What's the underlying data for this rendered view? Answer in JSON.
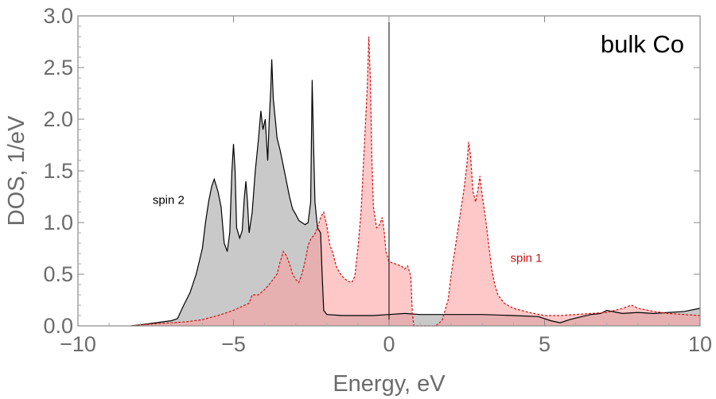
{
  "chart_data": {
    "type": "area",
    "title": "bulk Co",
    "xlabel": "Energy, eV",
    "ylabel": "DOS, 1/eV",
    "xlim": [
      -10,
      10
    ],
    "ylim": [
      0,
      3.0
    ],
    "xticks": [
      -10,
      -5,
      0,
      5,
      10
    ],
    "xtick_labels": [
      "−10",
      "−5",
      "0",
      "5",
      "10"
    ],
    "yticks": [
      0,
      0.5,
      1.0,
      1.5,
      2.0,
      2.5,
      3.0
    ],
    "ytick_labels": [
      "0.0",
      "0.5",
      "1.0",
      "1.5",
      "2.0",
      "2.5",
      "3.0"
    ],
    "grid": false,
    "vertical_line_x": 0,
    "annotations": [
      {
        "text": "spin 2",
        "x": -7.6,
        "y": 1.18,
        "color": "#000000"
      },
      {
        "text": "spin 1",
        "x": 3.9,
        "y": 0.62,
        "color": "#cc1111"
      }
    ],
    "series": [
      {
        "name": "spin 2",
        "line_color": "#000000",
        "fill_color": "#c9c9c9",
        "line_style": "solid",
        "points": [
          [
            -8.3,
            0.0
          ],
          [
            -8.0,
            0.01
          ],
          [
            -7.5,
            0.03
          ],
          [
            -7.0,
            0.05
          ],
          [
            -6.8,
            0.07
          ],
          [
            -6.6,
            0.2
          ],
          [
            -6.4,
            0.32
          ],
          [
            -6.2,
            0.5
          ],
          [
            -6.0,
            0.75
          ],
          [
            -5.9,
            1.0
          ],
          [
            -5.8,
            1.2
          ],
          [
            -5.7,
            1.35
          ],
          [
            -5.62,
            1.42
          ],
          [
            -5.5,
            1.3
          ],
          [
            -5.4,
            1.15
          ],
          [
            -5.3,
            0.8
          ],
          [
            -5.2,
            0.72
          ],
          [
            -5.12,
            0.9
          ],
          [
            -5.05,
            1.5
          ],
          [
            -5.0,
            1.76
          ],
          [
            -4.95,
            1.5
          ],
          [
            -4.9,
            0.95
          ],
          [
            -4.8,
            0.85
          ],
          [
            -4.72,
            0.92
          ],
          [
            -4.65,
            1.25
          ],
          [
            -4.6,
            1.4
          ],
          [
            -4.55,
            1.2
          ],
          [
            -4.5,
            0.9
          ],
          [
            -4.4,
            1.1
          ],
          [
            -4.3,
            1.5
          ],
          [
            -4.2,
            1.8
          ],
          [
            -4.12,
            2.08
          ],
          [
            -4.05,
            1.9
          ],
          [
            -3.98,
            2.0
          ],
          [
            -3.9,
            1.6
          ],
          [
            -3.85,
            2.0
          ],
          [
            -3.8,
            2.3
          ],
          [
            -3.77,
            2.58
          ],
          [
            -3.72,
            2.2
          ],
          [
            -3.65,
            1.98
          ],
          [
            -3.6,
            1.82
          ],
          [
            -3.5,
            1.7
          ],
          [
            -3.4,
            1.55
          ],
          [
            -3.3,
            1.4
          ],
          [
            -3.2,
            1.25
          ],
          [
            -3.1,
            1.13
          ],
          [
            -3.0,
            1.08
          ],
          [
            -2.9,
            1.02
          ],
          [
            -2.8,
            1.0
          ],
          [
            -2.7,
            0.98
          ],
          [
            -2.6,
            1.0
          ],
          [
            -2.52,
            1.2
          ],
          [
            -2.47,
            2.38
          ],
          [
            -2.43,
            1.8
          ],
          [
            -2.38,
            1.2
          ],
          [
            -2.3,
            0.95
          ],
          [
            -2.2,
            0.9
          ],
          [
            -2.15,
            0.5
          ],
          [
            -2.1,
            0.15
          ],
          [
            -2.0,
            0.11
          ],
          [
            -1.5,
            0.1
          ],
          [
            -1.0,
            0.1
          ],
          [
            -0.5,
            0.1
          ],
          [
            0.0,
            0.11
          ],
          [
            0.5,
            0.12
          ],
          [
            1.0,
            0.11
          ],
          [
            2.0,
            0.11
          ],
          [
            3.0,
            0.11
          ],
          [
            4.0,
            0.1
          ],
          [
            4.8,
            0.09
          ],
          [
            5.2,
            0.05
          ],
          [
            5.5,
            0.03
          ],
          [
            5.8,
            0.06
          ],
          [
            6.2,
            0.09
          ],
          [
            6.5,
            0.11
          ],
          [
            6.8,
            0.12
          ],
          [
            7.0,
            0.15
          ],
          [
            7.5,
            0.12
          ],
          [
            8.0,
            0.13
          ],
          [
            8.5,
            0.12
          ],
          [
            9.0,
            0.13
          ],
          [
            9.5,
            0.14
          ],
          [
            10.0,
            0.17
          ]
        ]
      },
      {
        "name": "spin 1",
        "line_color": "#cc1111",
        "fill_color": "#ff9b9b",
        "fill_opacity": 0.55,
        "line_style": "dashed",
        "points": [
          [
            -8.3,
            0.0
          ],
          [
            -8.0,
            0.01
          ],
          [
            -7.5,
            0.02
          ],
          [
            -7.0,
            0.03
          ],
          [
            -6.5,
            0.04
          ],
          [
            -6.0,
            0.06
          ],
          [
            -5.5,
            0.1
          ],
          [
            -5.0,
            0.15
          ],
          [
            -4.5,
            0.22
          ],
          [
            -4.4,
            0.3
          ],
          [
            -4.2,
            0.3
          ],
          [
            -4.0,
            0.35
          ],
          [
            -3.8,
            0.42
          ],
          [
            -3.6,
            0.5
          ],
          [
            -3.5,
            0.62
          ],
          [
            -3.4,
            0.72
          ],
          [
            -3.3,
            0.68
          ],
          [
            -3.2,
            0.6
          ],
          [
            -3.1,
            0.5
          ],
          [
            -3.0,
            0.45
          ],
          [
            -2.9,
            0.42
          ],
          [
            -2.8,
            0.5
          ],
          [
            -2.7,
            0.62
          ],
          [
            -2.6,
            0.78
          ],
          [
            -2.5,
            0.85
          ],
          [
            -2.4,
            0.88
          ],
          [
            -2.3,
            0.95
          ],
          [
            -2.2,
            1.05
          ],
          [
            -2.1,
            1.1
          ],
          [
            -2.0,
            0.97
          ],
          [
            -1.9,
            0.78
          ],
          [
            -1.8,
            0.7
          ],
          [
            -1.7,
            0.58
          ],
          [
            -1.6,
            0.52
          ],
          [
            -1.5,
            0.48
          ],
          [
            -1.4,
            0.45
          ],
          [
            -1.3,
            0.43
          ],
          [
            -1.2,
            0.42
          ],
          [
            -1.1,
            0.48
          ],
          [
            -1.0,
            0.75
          ],
          [
            -0.9,
            1.1
          ],
          [
            -0.8,
            1.7
          ],
          [
            -0.7,
            2.3
          ],
          [
            -0.65,
            2.8
          ],
          [
            -0.6,
            2.4
          ],
          [
            -0.55,
            1.6
          ],
          [
            -0.5,
            1.15
          ],
          [
            -0.45,
            1.05
          ],
          [
            -0.4,
            0.95
          ],
          [
            -0.3,
            0.98
          ],
          [
            -0.22,
            1.05
          ],
          [
            -0.15,
            0.9
          ],
          [
            -0.1,
            0.72
          ],
          [
            0.0,
            0.62
          ],
          [
            0.2,
            0.6
          ],
          [
            0.4,
            0.58
          ],
          [
            0.5,
            0.55
          ],
          [
            0.6,
            0.58
          ],
          [
            0.7,
            0.48
          ],
          [
            0.75,
            0.12
          ],
          [
            0.8,
            0.0
          ],
          [
            1.5,
            0.0
          ],
          [
            1.7,
            0.05
          ],
          [
            1.9,
            0.25
          ],
          [
            2.0,
            0.5
          ],
          [
            2.1,
            0.7
          ],
          [
            2.2,
            0.9
          ],
          [
            2.3,
            1.1
          ],
          [
            2.4,
            1.3
          ],
          [
            2.5,
            1.55
          ],
          [
            2.56,
            1.78
          ],
          [
            2.62,
            1.65
          ],
          [
            2.7,
            1.3
          ],
          [
            2.78,
            1.2
          ],
          [
            2.85,
            1.3
          ],
          [
            2.92,
            1.45
          ],
          [
            3.0,
            1.25
          ],
          [
            3.1,
            1.05
          ],
          [
            3.2,
            0.8
          ],
          [
            3.3,
            0.55
          ],
          [
            3.4,
            0.4
          ],
          [
            3.5,
            0.3
          ],
          [
            3.7,
            0.22
          ],
          [
            4.0,
            0.17
          ],
          [
            4.5,
            0.13
          ],
          [
            5.0,
            0.1
          ],
          [
            5.5,
            0.1
          ],
          [
            6.0,
            0.11
          ],
          [
            6.5,
            0.12
          ],
          [
            7.0,
            0.13
          ],
          [
            7.5,
            0.17
          ],
          [
            7.8,
            0.2
          ],
          [
            8.0,
            0.17
          ],
          [
            8.5,
            0.14
          ],
          [
            9.0,
            0.12
          ],
          [
            9.5,
            0.11
          ],
          [
            10.0,
            0.1
          ]
        ]
      }
    ]
  }
}
